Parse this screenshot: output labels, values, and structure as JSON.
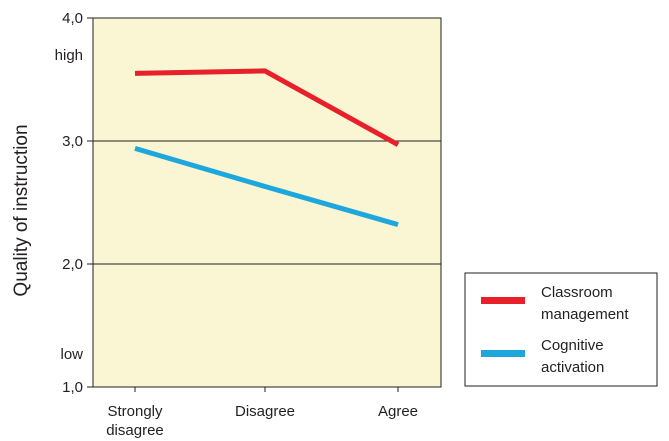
{
  "chart_data": {
    "type": "line",
    "title": "",
    "xlabel": "",
    "ylabel": "Quality of instruction",
    "ylim": [
      1.0,
      4.0
    ],
    "yticks": [
      {
        "value": 1.0,
        "label": "1,0"
      },
      {
        "value": 2.0,
        "label": "2,0"
      },
      {
        "value": 3.0,
        "label": "3,0"
      },
      {
        "value": 4.0,
        "label": "4,0"
      }
    ],
    "y_annotations": [
      {
        "value": 3.7,
        "label": "high"
      },
      {
        "value": 1.27,
        "label": "low"
      }
    ],
    "grid": "horizontal at 2,0 and 3,0",
    "categories": [
      [
        "Strongly",
        "disagree"
      ],
      [
        "Disagree"
      ],
      [
        "Agree"
      ]
    ],
    "series": [
      {
        "name": "Classroom management",
        "legend_lines": [
          "Classroom",
          "management"
        ],
        "color": "#e8202a",
        "values": [
          3.55,
          3.57,
          2.97
        ]
      },
      {
        "name": "Cognitive activation",
        "legend_lines": [
          "Cognitive",
          "activation"
        ],
        "color": "#1ea7dd",
        "values": [
          2.94,
          2.63,
          2.32
        ]
      }
    ],
    "plot_background": "#faf5d2",
    "legend_position": "bottom-right, outside plot"
  }
}
